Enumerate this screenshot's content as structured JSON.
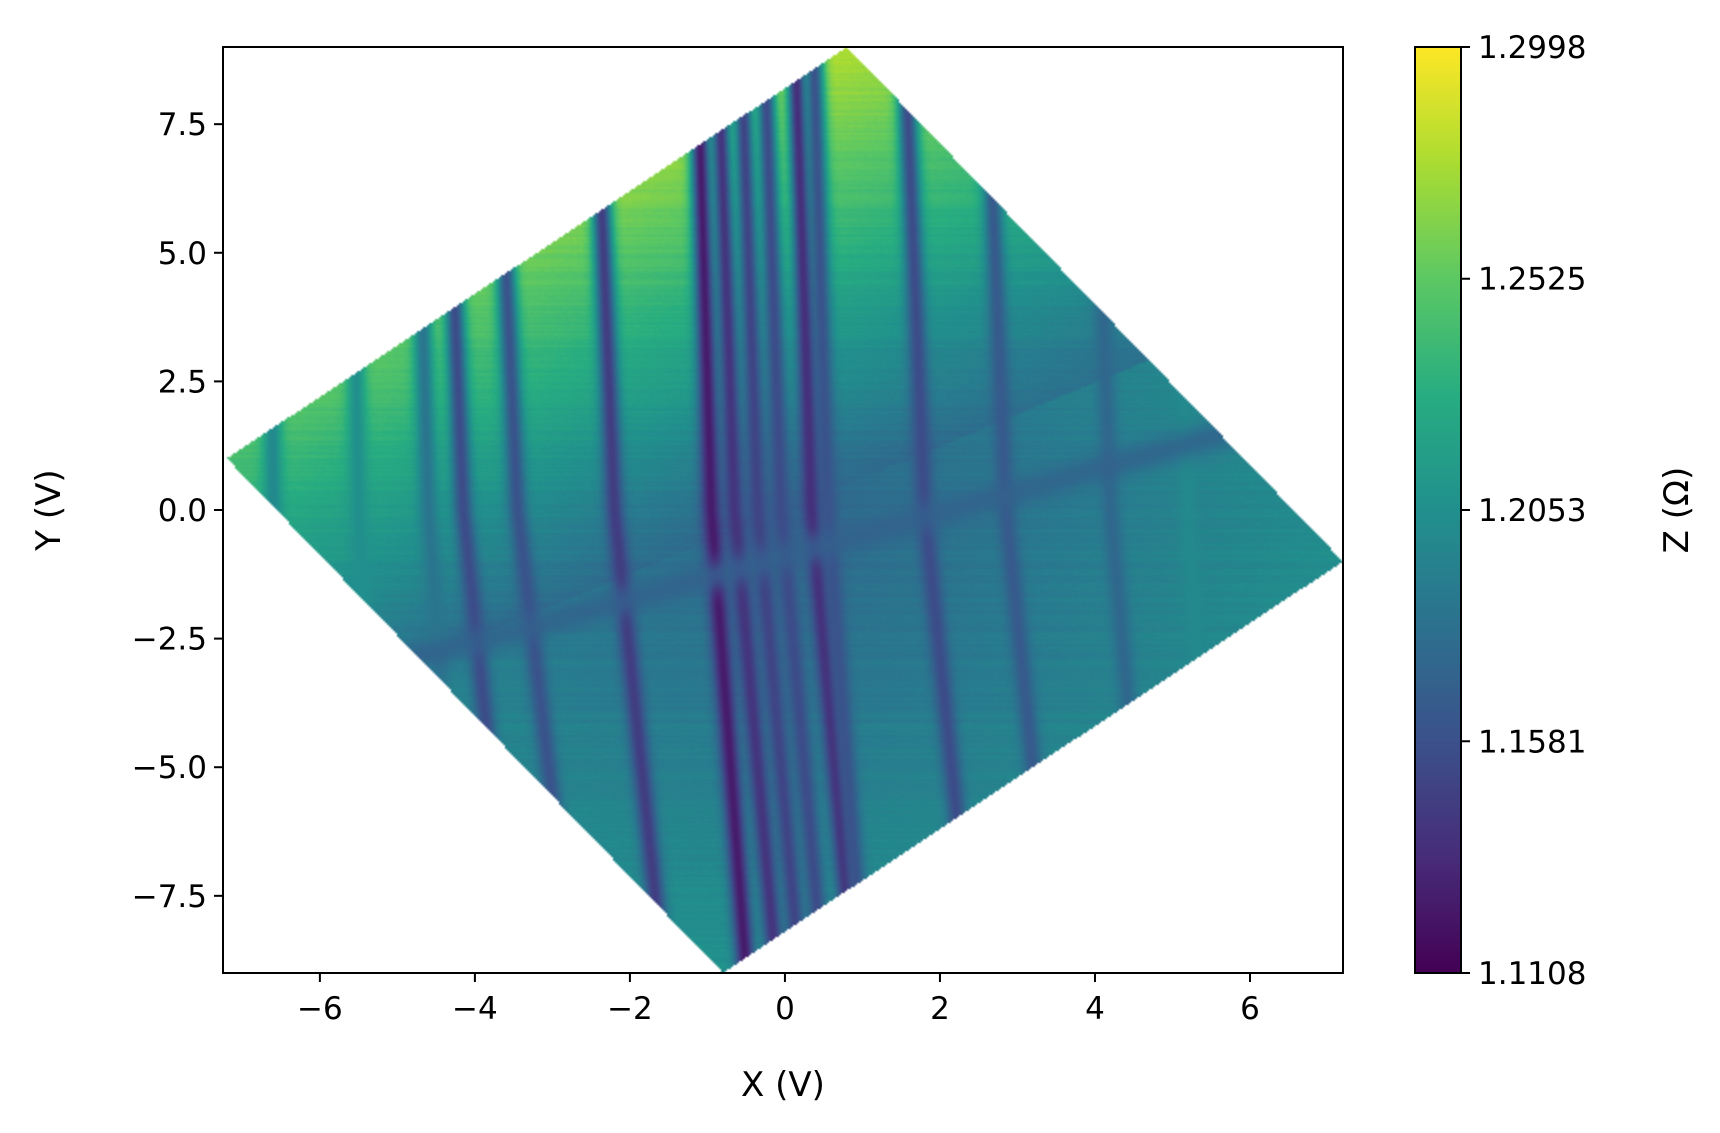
{
  "chart_data": {
    "type": "heatmap",
    "xlabel": "X (V)",
    "ylabel": "Y (V)",
    "colorbar_label": "Z (Ω)",
    "xlim": [
      -7.25,
      7.2
    ],
    "ylim": [
      -9.0,
      9.0
    ],
    "x_ticks": [
      -6,
      -4,
      -2,
      0,
      2,
      4,
      6
    ],
    "x_tick_labels": [
      "−6",
      "−4",
      "−2",
      "0",
      "2",
      "4",
      "6"
    ],
    "y_ticks": [
      7.5,
      5.0,
      2.5,
      0.0,
      -2.5,
      -5.0,
      -7.5
    ],
    "y_tick_labels": [
      "7.5",
      "5.0",
      "2.5",
      "0.0",
      "−2.5",
      "−5.0",
      "−7.5"
    ],
    "zlim": [
      1.1108,
      1.2998
    ],
    "colorbar_ticks": [
      1.2998,
      1.2525,
      1.2053,
      1.1581,
      1.1108
    ],
    "colorbar_tick_labels": [
      "1.2998",
      "1.2525",
      "1.2053",
      "1.1581",
      "1.1108"
    ],
    "colormap": [
      "#440154",
      "#472c7a",
      "#3b518b",
      "#2c718e",
      "#21908d",
      "#27ad81",
      "#5cc863",
      "#aadc32",
      "#fde725"
    ],
    "scan_region_corners": [
      [
        0.8,
        9.0
      ],
      [
        7.2,
        -1.0
      ],
      [
        -0.8,
        -9.0
      ],
      [
        -7.2,
        1.0
      ]
    ],
    "background_z": {
      "top_left": 1.29,
      "top": 1.24,
      "left": 1.22,
      "right": 1.2,
      "bottom": 1.23,
      "center": 1.175
    },
    "features": [
      {
        "type": "vertical-line",
        "x_at_y0": -6.6,
        "slope": 0.02,
        "z": 1.2
      },
      {
        "type": "vertical-line",
        "x_at_y0": -5.5,
        "slope": 0.03,
        "z": 1.205
      },
      {
        "type": "vertical-line",
        "x_at_y0": -4.6,
        "slope": 0.05,
        "z": 1.185
      },
      {
        "type": "vertical-line",
        "x_at_y0": -4.15,
        "slope": 0.07,
        "z": 1.155
      },
      {
        "type": "vertical-line",
        "x_at_y0": -3.45,
        "slope": 0.08,
        "z": 1.16
      },
      {
        "type": "vertical-line",
        "x_at_y0": -2.2,
        "slope": 0.07,
        "z": 1.145
      },
      {
        "type": "vertical-line",
        "x_at_y0": -0.95,
        "slope": 0.05,
        "z": 1.125
      },
      {
        "type": "vertical-line",
        "x_at_y0": -0.65,
        "slope": 0.06,
        "z": 1.14
      },
      {
        "type": "vertical-line",
        "x_at_y0": -0.35,
        "slope": 0.06,
        "z": 1.15
      },
      {
        "type": "vertical-line",
        "x_at_y0": -0.05,
        "slope": 0.06,
        "z": 1.155
      },
      {
        "type": "vertical-line",
        "x_at_y0": 0.35,
        "slope": 0.06,
        "z": 1.135
      },
      {
        "type": "vertical-line",
        "x_at_y0": 0.55,
        "slope": 0.05,
        "z": 1.16
      },
      {
        "type": "vertical-line",
        "x_at_y0": 1.8,
        "slope": 0.07,
        "z": 1.155
      },
      {
        "type": "vertical-line",
        "x_at_y0": 2.85,
        "slope": 0.07,
        "z": 1.165
      },
      {
        "type": "vertical-line",
        "x_at_y0": 4.2,
        "slope": 0.06,
        "z": 1.175
      },
      {
        "type": "vertical-line",
        "x_at_y0": 5.2,
        "slope": 0.04,
        "z": 1.2
      },
      {
        "type": "horizontal-line",
        "y_at_x0": -0.9,
        "slope": 0.42,
        "z": 1.17
      }
    ]
  }
}
